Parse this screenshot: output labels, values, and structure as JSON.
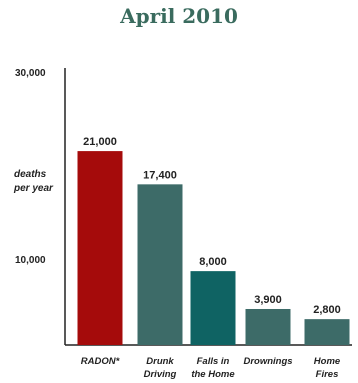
{
  "chart_data": {
    "type": "bar",
    "title": "April 2010",
    "ylabel": [
      "deaths",
      "per year"
    ],
    "ylim": [
      0,
      30000
    ],
    "yticks": [
      "10,000",
      "30,000"
    ],
    "categories": [
      [
        "RADON*"
      ],
      [
        "Drunk",
        "Driving"
      ],
      [
        "Falls in",
        "the Home"
      ],
      [
        "Drownings"
      ],
      [
        "Home",
        "Fires"
      ]
    ],
    "values": [
      21000,
      17400,
      8000,
      3900,
      2800
    ],
    "value_labels": [
      "21,000",
      "17,400",
      "8,000",
      "3,900",
      "2,800"
    ],
    "colors": [
      "#a50b0b",
      "#3d6b68",
      "#0f6363",
      "#3d6b68",
      "#3d6b68"
    ],
    "grid": false
  }
}
